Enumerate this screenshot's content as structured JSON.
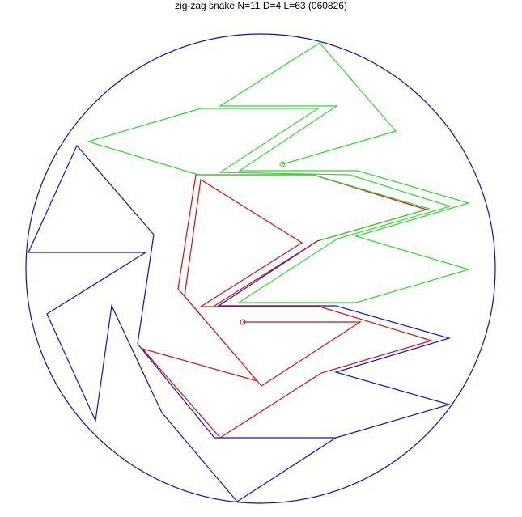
{
  "title": "zig-zag snake N=11 D=4 L=63 (060826)",
  "colors": {
    "boundary": "#1010b0",
    "blue_path": "#1010c8",
    "red_path": "#d01010",
    "green_path": "#30d830",
    "background": "#ffffff"
  }
}
